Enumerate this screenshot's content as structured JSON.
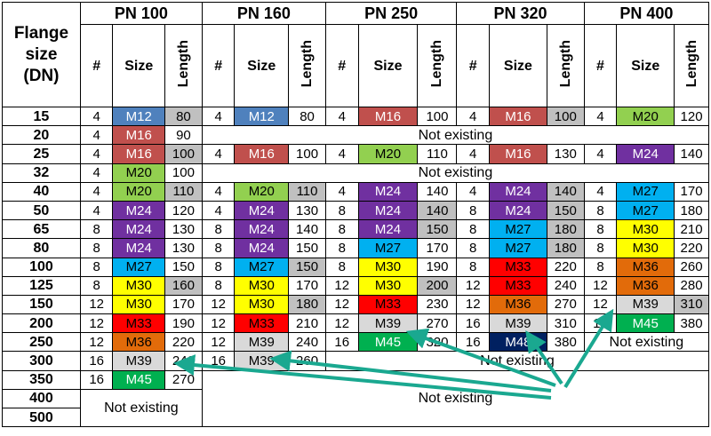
{
  "header": {
    "flange_label": [
      "Flange",
      "size",
      "(DN)"
    ],
    "pn_groups": [
      "PN 100",
      "PN 160",
      "PN 250",
      "PN 320",
      "PN 400"
    ],
    "sub_count": "#",
    "sub_size": "Size",
    "sub_length": "Length"
  },
  "not_existing": "Not existing",
  "rows": [
    {
      "dn": "15",
      "cells": [
        [
          "4",
          "M12",
          "80"
        ],
        [
          "4",
          "M12",
          "80"
        ],
        [
          "4",
          "M16",
          "100"
        ],
        [
          "4",
          "M16",
          "100"
        ],
        [
          "4",
          "M20",
          "120"
        ]
      ]
    },
    {
      "dn": "20",
      "cells": [
        [
          "4",
          "M16",
          "90"
        ],
        null,
        null,
        null,
        null
      ]
    },
    {
      "dn": "25",
      "cells": [
        [
          "4",
          "M16",
          "100"
        ],
        [
          "4",
          "M16",
          "100"
        ],
        [
          "4",
          "M20",
          "110"
        ],
        [
          "4",
          "M16",
          "130"
        ],
        [
          "4",
          "M24",
          "140"
        ]
      ]
    },
    {
      "dn": "32",
      "cells": [
        [
          "4",
          "M20",
          "100"
        ],
        null,
        null,
        null,
        null
      ]
    },
    {
      "dn": "40",
      "cells": [
        [
          "4",
          "M20",
          "110"
        ],
        [
          "4",
          "M20",
          "110"
        ],
        [
          "4",
          "M24",
          "140"
        ],
        [
          "4",
          "M24",
          "140"
        ],
        [
          "4",
          "M27",
          "170"
        ]
      ]
    },
    {
      "dn": "50",
      "cells": [
        [
          "4",
          "M24",
          "120"
        ],
        [
          "4",
          "M24",
          "130"
        ],
        [
          "8",
          "M24",
          "140"
        ],
        [
          "8",
          "M24",
          "150"
        ],
        [
          "8",
          "M27",
          "180"
        ]
      ]
    },
    {
      "dn": "65",
      "cells": [
        [
          "8",
          "M24",
          "130"
        ],
        [
          "8",
          "M24",
          "140"
        ],
        [
          "8",
          "M24",
          "150"
        ],
        [
          "8",
          "M27",
          "180"
        ],
        [
          "8",
          "M30",
          "210"
        ]
      ]
    },
    {
      "dn": "80",
      "cells": [
        [
          "8",
          "M24",
          "130"
        ],
        [
          "8",
          "M24",
          "150"
        ],
        [
          "8",
          "M27",
          "170"
        ],
        [
          "8",
          "M27",
          "180"
        ],
        [
          "8",
          "M30",
          "220"
        ]
      ]
    },
    {
      "dn": "100",
      "cells": [
        [
          "8",
          "M27",
          "150"
        ],
        [
          "8",
          "M27",
          "150"
        ],
        [
          "8",
          "M30",
          "190"
        ],
        [
          "8",
          "M33",
          "220"
        ],
        [
          "8",
          "M36",
          "260"
        ]
      ]
    },
    {
      "dn": "125",
      "cells": [
        [
          "8",
          "M30",
          "160"
        ],
        [
          "8",
          "M30",
          "170"
        ],
        [
          "12",
          "M30",
          "200"
        ],
        [
          "12",
          "M33",
          "240"
        ],
        [
          "12",
          "M36",
          "280"
        ]
      ]
    },
    {
      "dn": "150",
      "cells": [
        [
          "12",
          "M30",
          "170"
        ],
        [
          "12",
          "M30",
          "180"
        ],
        [
          "12",
          "M33",
          "230"
        ],
        [
          "12",
          "M36",
          "270"
        ],
        [
          "12",
          "M39",
          "310"
        ]
      ]
    },
    {
      "dn": "200",
      "cells": [
        [
          "12",
          "M33",
          "190"
        ],
        [
          "12",
          "M33",
          "210"
        ],
        [
          "12",
          "M39",
          "270"
        ],
        [
          "16",
          "M39",
          "310"
        ],
        [
          "16",
          "M45",
          "380"
        ]
      ]
    },
    {
      "dn": "250",
      "cells": [
        [
          "12",
          "M36",
          "220"
        ],
        [
          "12",
          "M39",
          "240"
        ],
        [
          "16",
          "M45",
          "320"
        ],
        [
          "16",
          "M48",
          "380"
        ],
        null
      ]
    },
    {
      "dn": "300",
      "cells": [
        [
          "16",
          "M39",
          "240"
        ],
        [
          "16",
          "M39",
          "260"
        ],
        null,
        null,
        null
      ]
    },
    {
      "dn": "350",
      "cells": [
        [
          "16",
          "M45",
          "270"
        ],
        null,
        null,
        null,
        null
      ]
    },
    {
      "dn": "400",
      "cells": [
        null,
        null,
        null,
        null,
        null
      ]
    },
    {
      "dn": "500",
      "cells": [
        null,
        null,
        null,
        null,
        null
      ]
    }
  ],
  "gray_lengths": [
    "0-0",
    "0-3",
    "1-4",
    "2-0",
    "4-0",
    "4-1",
    "4-3",
    "5-2",
    "5-3",
    "6-2",
    "6-3",
    "7-3",
    "8-1",
    "9-0",
    "9-2",
    "10-1",
    "10-4"
  ],
  "arrow_color": "#1aa890"
}
